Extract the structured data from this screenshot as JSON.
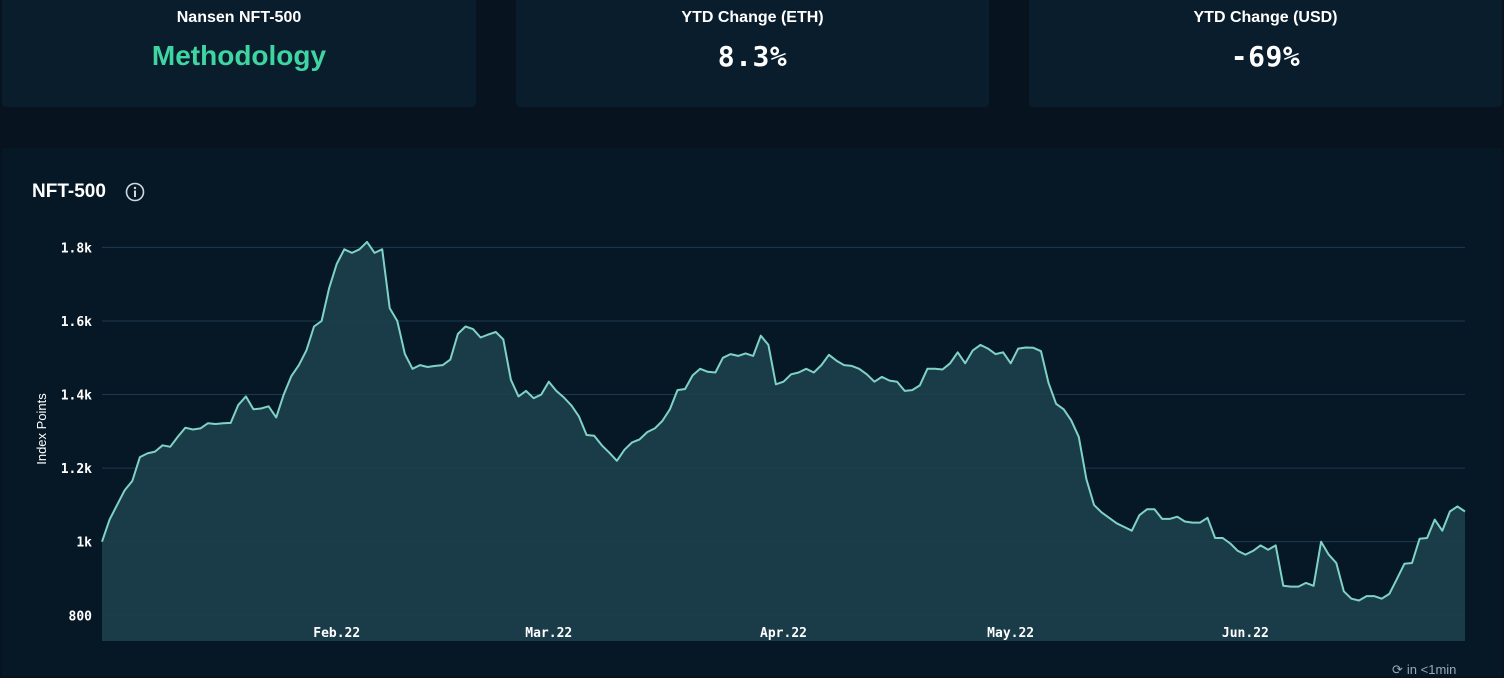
{
  "cards": [
    {
      "label": "Nansen NFT-500",
      "value": "Methodology"
    },
    {
      "label": "YTD Change (ETH)",
      "value": "8.3%"
    },
    {
      "label": "YTD Change (USD)",
      "value": "-69%"
    }
  ],
  "chart_panel": {
    "title": "NFT-500",
    "info_icon": "info-icon",
    "refresh_icon": "refresh-icon",
    "refresh_note": "in <1min"
  },
  "colors": {
    "page_background": "#07141f",
    "card_background": "#0a1d2c",
    "methodology_link": "#3fd5a2",
    "line": "#7fd3c6",
    "area_fill": "#1d3f4d",
    "gridline": "#1d3a52"
  },
  "chart_data": {
    "type": "area",
    "title": "NFT-500",
    "ylabel": "Index Points",
    "xlabel": "",
    "ylim": [
      730,
      1880
    ],
    "xlim": [
      "2022-01-01",
      "2022-06-30"
    ],
    "y_ticks": [
      800,
      1000,
      1200,
      1400,
      1600,
      1800
    ],
    "y_tick_labels": [
      "800",
      "1k",
      "1.2k",
      "1.4k",
      "1.6k",
      "1.8k"
    ],
    "x_ticks": [
      "2022-02-01",
      "2022-03-01",
      "2022-04-01",
      "2022-05-01",
      "2022-06-01"
    ],
    "x_tick_labels": [
      "Feb.22",
      "Mar.22",
      "Apr.22",
      "May.22",
      "Jun.22"
    ],
    "grid": true,
    "legend": "none",
    "series": [
      {
        "points": [
          [
            "2022-01-01",
            1000
          ],
          [
            "2022-01-02",
            1060
          ],
          [
            "2022-01-03",
            1100
          ],
          [
            "2022-01-04",
            1140
          ],
          [
            "2022-01-05",
            1165
          ],
          [
            "2022-01-06",
            1230
          ],
          [
            "2022-01-07",
            1240
          ],
          [
            "2022-01-08",
            1245
          ],
          [
            "2022-01-09",
            1262
          ],
          [
            "2022-01-10",
            1258
          ],
          [
            "2022-01-11",
            1285
          ],
          [
            "2022-01-12",
            1310
          ],
          [
            "2022-01-13",
            1305
          ],
          [
            "2022-01-14",
            1308
          ],
          [
            "2022-01-15",
            1322
          ],
          [
            "2022-01-16",
            1320
          ],
          [
            "2022-01-17",
            1322
          ],
          [
            "2022-01-18",
            1323
          ],
          [
            "2022-01-19",
            1372
          ],
          [
            "2022-01-20",
            1395
          ],
          [
            "2022-01-21",
            1360
          ],
          [
            "2022-01-22",
            1362
          ],
          [
            "2022-01-23",
            1368
          ],
          [
            "2022-01-24",
            1338
          ],
          [
            "2022-01-25",
            1400
          ],
          [
            "2022-01-26",
            1450
          ],
          [
            "2022-01-27",
            1480
          ],
          [
            "2022-01-28",
            1520
          ],
          [
            "2022-01-29",
            1585
          ],
          [
            "2022-01-30",
            1600
          ],
          [
            "2022-01-31",
            1690
          ],
          [
            "2022-02-01",
            1755
          ],
          [
            "2022-02-02",
            1795
          ],
          [
            "2022-02-03",
            1785
          ],
          [
            "2022-02-04",
            1795
          ],
          [
            "2022-02-05",
            1815
          ],
          [
            "2022-02-06",
            1785
          ],
          [
            "2022-02-07",
            1795
          ],
          [
            "2022-02-08",
            1635
          ],
          [
            "2022-02-09",
            1600
          ],
          [
            "2022-02-10",
            1510
          ],
          [
            "2022-02-11",
            1470
          ],
          [
            "2022-02-12",
            1480
          ],
          [
            "2022-02-13",
            1475
          ],
          [
            "2022-02-14",
            1478
          ],
          [
            "2022-02-15",
            1480
          ],
          [
            "2022-02-16",
            1495
          ],
          [
            "2022-02-17",
            1565
          ],
          [
            "2022-02-18",
            1585
          ],
          [
            "2022-02-19",
            1578
          ],
          [
            "2022-02-20",
            1555
          ],
          [
            "2022-02-21",
            1563
          ],
          [
            "2022-02-22",
            1570
          ],
          [
            "2022-02-23",
            1550
          ],
          [
            "2022-02-24",
            1440
          ],
          [
            "2022-02-25",
            1395
          ],
          [
            "2022-02-26",
            1410
          ],
          [
            "2022-02-27",
            1390
          ],
          [
            "2022-02-28",
            1400
          ],
          [
            "2022-03-01",
            1435
          ],
          [
            "2022-03-02",
            1410
          ],
          [
            "2022-03-03",
            1392
          ],
          [
            "2022-03-04",
            1370
          ],
          [
            "2022-03-05",
            1340
          ],
          [
            "2022-03-06",
            1290
          ],
          [
            "2022-03-07",
            1288
          ],
          [
            "2022-03-08",
            1262
          ],
          [
            "2022-03-09",
            1242
          ],
          [
            "2022-03-10",
            1220
          ],
          [
            "2022-03-11",
            1250
          ],
          [
            "2022-03-12",
            1270
          ],
          [
            "2022-03-13",
            1278
          ],
          [
            "2022-03-14",
            1298
          ],
          [
            "2022-03-15",
            1308
          ],
          [
            "2022-03-16",
            1328
          ],
          [
            "2022-03-17",
            1360
          ],
          [
            "2022-03-18",
            1412
          ],
          [
            "2022-03-19",
            1415
          ],
          [
            "2022-03-20",
            1452
          ],
          [
            "2022-03-21",
            1470
          ],
          [
            "2022-03-22",
            1462
          ],
          [
            "2022-03-23",
            1460
          ],
          [
            "2022-03-24",
            1500
          ],
          [
            "2022-03-25",
            1510
          ],
          [
            "2022-03-26",
            1505
          ],
          [
            "2022-03-27",
            1512
          ],
          [
            "2022-03-28",
            1505
          ],
          [
            "2022-03-29",
            1560
          ],
          [
            "2022-03-30",
            1535
          ],
          [
            "2022-03-31",
            1428
          ],
          [
            "2022-04-01",
            1435
          ],
          [
            "2022-04-02",
            1455
          ],
          [
            "2022-04-03",
            1460
          ],
          [
            "2022-04-04",
            1470
          ],
          [
            "2022-04-05",
            1460
          ],
          [
            "2022-04-06",
            1480
          ],
          [
            "2022-04-07",
            1508
          ],
          [
            "2022-04-08",
            1492
          ],
          [
            "2022-04-09",
            1480
          ],
          [
            "2022-04-10",
            1478
          ],
          [
            "2022-04-11",
            1470
          ],
          [
            "2022-04-12",
            1455
          ],
          [
            "2022-04-13",
            1435
          ],
          [
            "2022-04-14",
            1448
          ],
          [
            "2022-04-15",
            1438
          ],
          [
            "2022-04-16",
            1435
          ],
          [
            "2022-04-17",
            1410
          ],
          [
            "2022-04-18",
            1412
          ],
          [
            "2022-04-19",
            1425
          ],
          [
            "2022-04-20",
            1470
          ],
          [
            "2022-04-21",
            1470
          ],
          [
            "2022-04-22",
            1468
          ],
          [
            "2022-04-23",
            1485
          ],
          [
            "2022-04-24",
            1515
          ],
          [
            "2022-04-25",
            1485
          ],
          [
            "2022-04-26",
            1520
          ],
          [
            "2022-04-27",
            1535
          ],
          [
            "2022-04-28",
            1525
          ],
          [
            "2022-04-29",
            1510
          ],
          [
            "2022-04-30",
            1515
          ],
          [
            "2022-05-01",
            1485
          ],
          [
            "2022-05-02",
            1525
          ],
          [
            "2022-05-03",
            1528
          ],
          [
            "2022-05-04",
            1527
          ],
          [
            "2022-05-05",
            1518
          ],
          [
            "2022-05-06",
            1432
          ],
          [
            "2022-05-07",
            1375
          ],
          [
            "2022-05-08",
            1360
          ],
          [
            "2022-05-09",
            1330
          ],
          [
            "2022-05-10",
            1285
          ],
          [
            "2022-05-11",
            1170
          ],
          [
            "2022-05-12",
            1100
          ],
          [
            "2022-05-13",
            1080
          ],
          [
            "2022-05-14",
            1065
          ],
          [
            "2022-05-15",
            1050
          ],
          [
            "2022-05-16",
            1040
          ],
          [
            "2022-05-17",
            1030
          ],
          [
            "2022-05-18",
            1072
          ],
          [
            "2022-05-19",
            1088
          ],
          [
            "2022-05-20",
            1088
          ],
          [
            "2022-05-21",
            1062
          ],
          [
            "2022-05-22",
            1062
          ],
          [
            "2022-05-23",
            1068
          ],
          [
            "2022-05-24",
            1055
          ],
          [
            "2022-05-25",
            1052
          ],
          [
            "2022-05-26",
            1052
          ],
          [
            "2022-05-27",
            1065
          ],
          [
            "2022-05-28",
            1010
          ],
          [
            "2022-05-29",
            1010
          ],
          [
            "2022-05-30",
            995
          ],
          [
            "2022-05-31",
            975
          ],
          [
            "2022-06-01",
            965
          ],
          [
            "2022-06-02",
            975
          ],
          [
            "2022-06-03",
            990
          ],
          [
            "2022-06-04",
            978
          ],
          [
            "2022-06-05",
            990
          ],
          [
            "2022-06-06",
            880
          ],
          [
            "2022-06-07",
            878
          ],
          [
            "2022-06-08",
            878
          ],
          [
            "2022-06-09",
            888
          ],
          [
            "2022-06-10",
            880
          ],
          [
            "2022-06-11",
            1000
          ],
          [
            "2022-06-12",
            965
          ],
          [
            "2022-06-13",
            942
          ],
          [
            "2022-06-14",
            865
          ],
          [
            "2022-06-15",
            845
          ],
          [
            "2022-06-16",
            840
          ],
          [
            "2022-06-17",
            852
          ],
          [
            "2022-06-18",
            852
          ],
          [
            "2022-06-19",
            845
          ],
          [
            "2022-06-20",
            858
          ],
          [
            "2022-06-21",
            898
          ],
          [
            "2022-06-22",
            940
          ],
          [
            "2022-06-23",
            942
          ],
          [
            "2022-06-24",
            1008
          ],
          [
            "2022-06-25",
            1010
          ],
          [
            "2022-06-26",
            1060
          ],
          [
            "2022-06-27",
            1030
          ],
          [
            "2022-06-28",
            1082
          ],
          [
            "2022-06-29",
            1096
          ],
          [
            "2022-06-30",
            1082
          ]
        ]
      }
    ]
  }
}
